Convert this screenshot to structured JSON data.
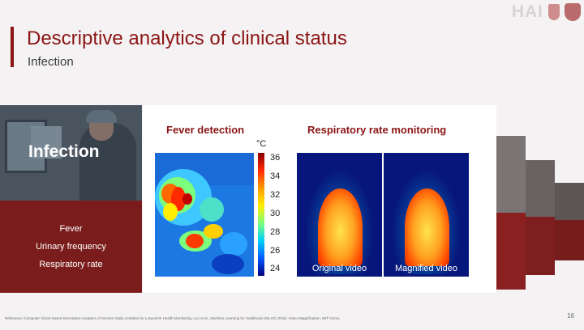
{
  "slide": {
    "title": "Descriptive analytics of clinical status",
    "subtitle": "Infection",
    "logo_text": "HAI",
    "page_number": "16",
    "reference": "Reference: Computer Vision-based Descriptive Analytics of Seniors' Daily Activities for Long-term Health Monitoring, Luo et al., Machine Learning for Healthcare (MLHC) 2018; Video Magnification, MIT CSAIL"
  },
  "left_panel": {
    "heading": "Infection",
    "symptoms": [
      "Fever",
      "Urinary frequency",
      "Respiratory rate"
    ]
  },
  "fever": {
    "label": "Fever detection",
    "unit": "°C",
    "scale": [
      "36",
      "34",
      "32",
      "30",
      "28",
      "26",
      "24"
    ]
  },
  "respiratory": {
    "label": "Respiratory rate monitoring",
    "videos": [
      "Original video",
      "Magnified video"
    ]
  },
  "colors": {
    "accent": "#8c1515",
    "panel_dark": "#7a1c1c",
    "video_bg": "#07167a"
  }
}
